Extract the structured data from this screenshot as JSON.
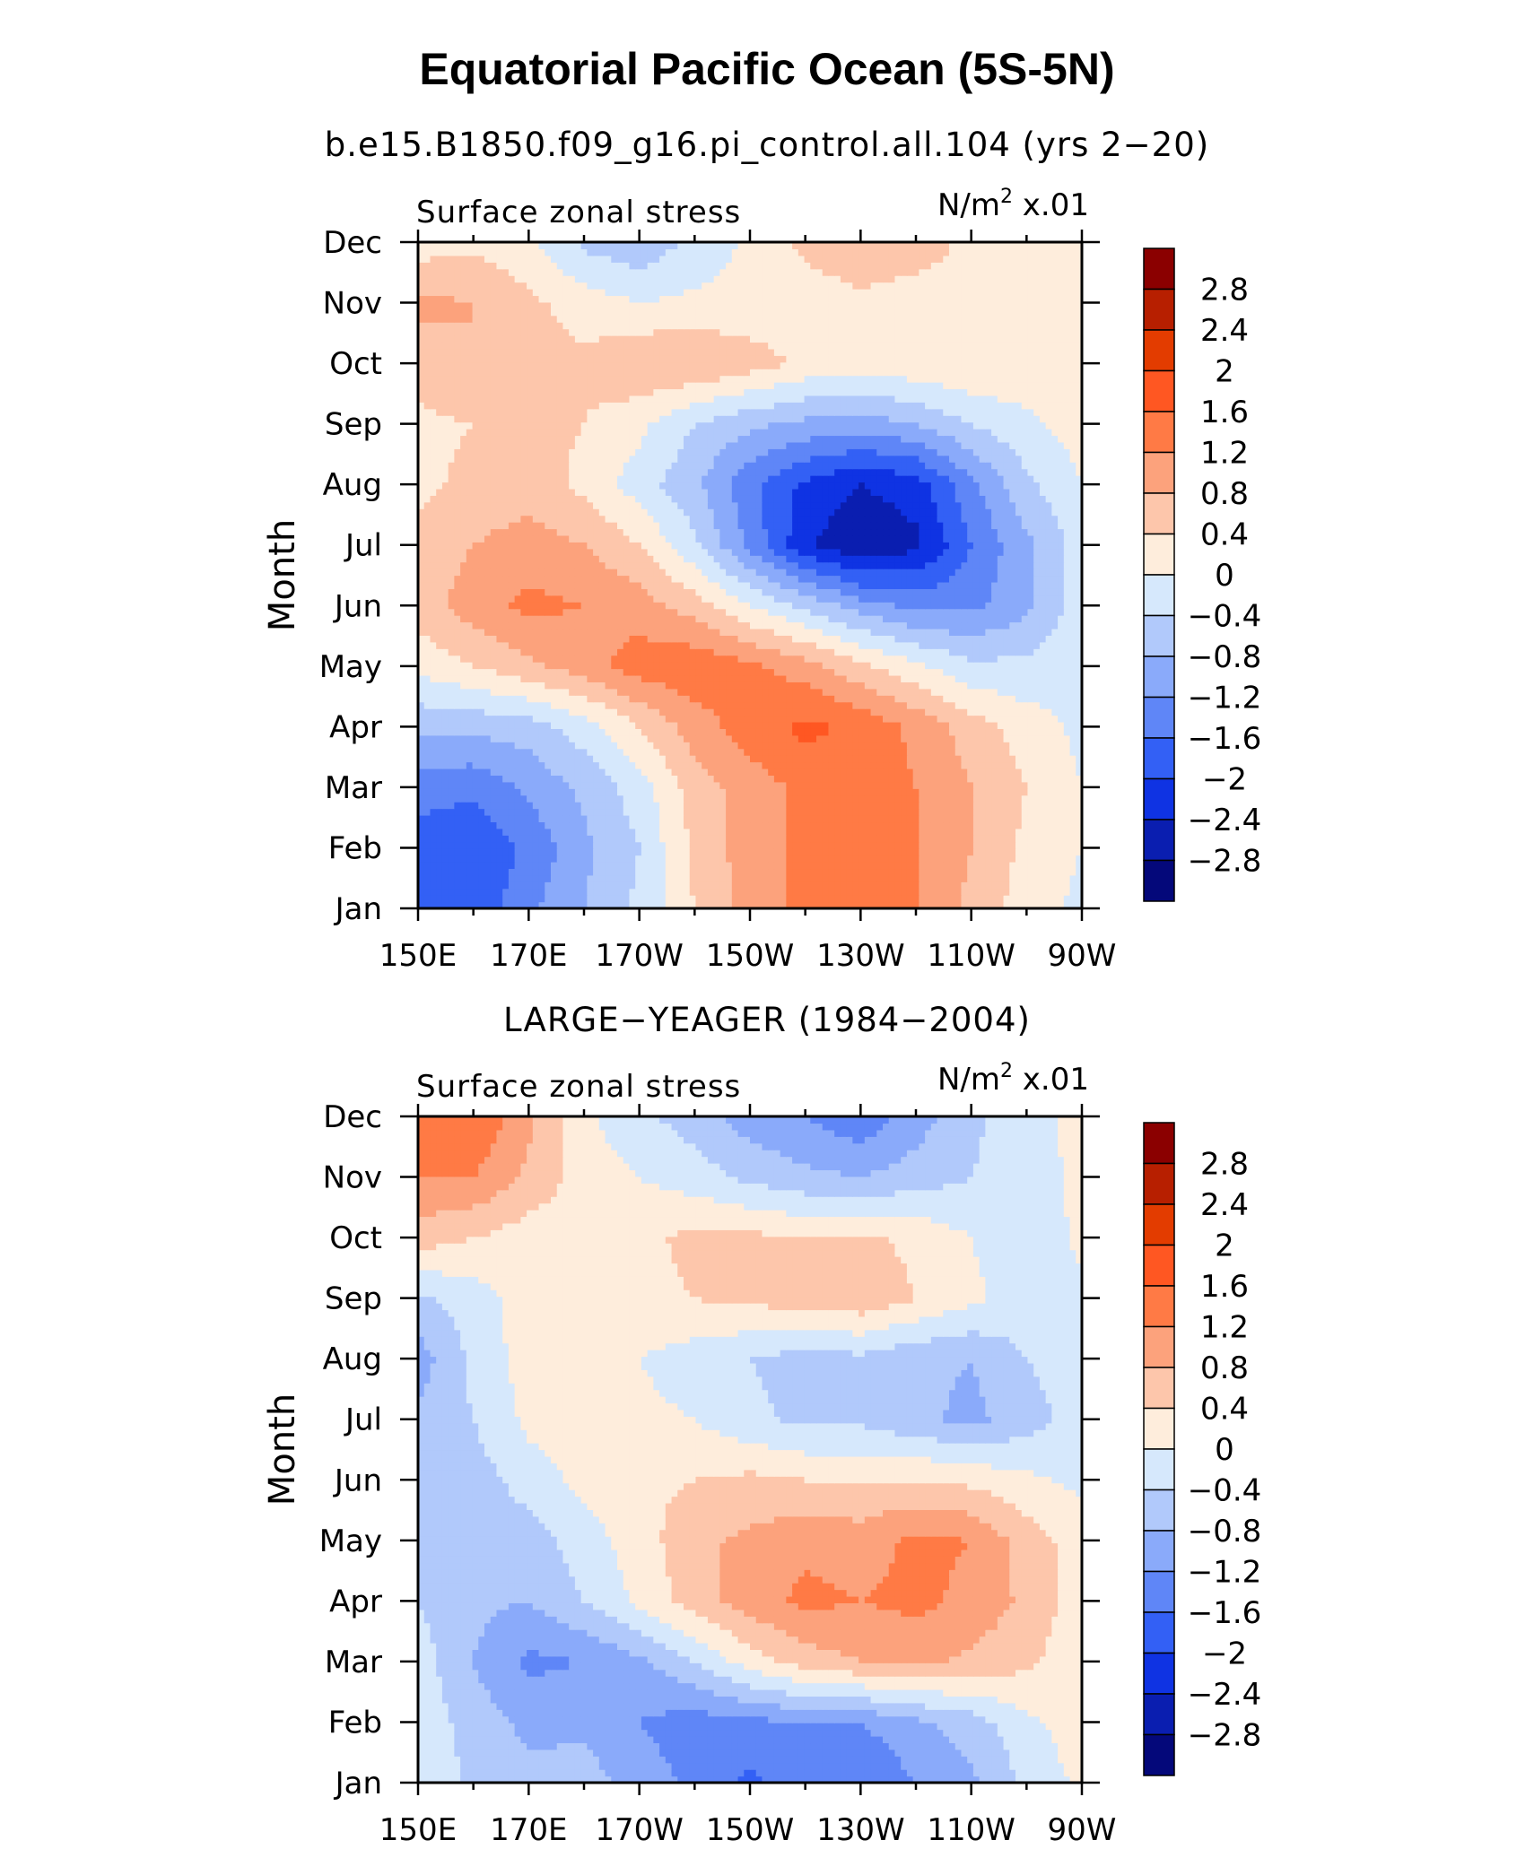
{
  "figure": {
    "title": "Equatorial Pacific Ocean (5S-5N)"
  },
  "chart_data": [
    {
      "type": "heatmap",
      "subtitle": "b.e15.B1850.f09_g16.pi_control.all.104 (yrs 2−20)",
      "left_label": "Surface zonal stress",
      "right_label": "N/m",
      "right_label_sup": "2",
      "right_label_suffix": " x.01",
      "ylabel": "Month",
      "x_ticks": [
        "150E",
        "170E",
        "170W",
        "150W",
        "130W",
        "110W",
        "90W"
      ],
      "x_values": [
        150,
        170,
        190,
        210,
        230,
        250,
        270
      ],
      "xlim": [
        150,
        270
      ],
      "y_ticks": [
        "Jan",
        "Feb",
        "Mar",
        "Apr",
        "May",
        "Jun",
        "Jul",
        "Aug",
        "Sep",
        "Oct",
        "Nov",
        "Dec"
      ],
      "ylim": [
        1,
        12
      ],
      "grid_lon": [
        150,
        160,
        170,
        180,
        190,
        200,
        210,
        220,
        230,
        240,
        250,
        260,
        270
      ],
      "values": [
        [
          -1.7,
          -1.9,
          -1.3,
          -0.8,
          -0.3,
          0.4,
          1.0,
          1.3,
          1.3,
          1.2,
          0.7,
          0.2,
          -0.1
        ],
        [
          -1.8,
          -2.0,
          -1.5,
          -0.9,
          -0.4,
          0.5,
          1.0,
          1.3,
          1.3,
          1.2,
          0.8,
          0.3,
          0.0
        ],
        [
          -1.4,
          -1.5,
          -1.1,
          -0.7,
          -0.2,
          0.6,
          1.0,
          1.3,
          1.4,
          1.2,
          0.8,
          0.4,
          0.0
        ],
        [
          -0.7,
          -0.7,
          -0.6,
          -0.2,
          0.4,
          1.0,
          1.4,
          1.7,
          1.5,
          1.1,
          0.6,
          0.2,
          -0.1
        ],
        [
          0.1,
          0.4,
          0.7,
          1.0,
          1.4,
          1.5,
          1.3,
          1.0,
          0.5,
          0.1,
          -0.3,
          -0.3,
          0.0
        ],
        [
          0.6,
          1.0,
          1.3,
          1.2,
          1.0,
          0.6,
          0.0,
          -0.5,
          -1.0,
          -1.3,
          -1.3,
          -0.9,
          -0.2
        ],
        [
          0.5,
          0.8,
          1.0,
          0.8,
          0.4,
          -0.3,
          -1.3,
          -2.3,
          -2.8,
          -2.5,
          -1.6,
          -0.9,
          -0.2
        ],
        [
          0.3,
          0.5,
          0.6,
          0.3,
          -0.2,
          -0.7,
          -1.5,
          -2.1,
          -2.4,
          -2.2,
          -1.3,
          -0.5,
          0.0
        ],
        [
          0.3,
          0.4,
          0.5,
          0.4,
          0.1,
          -0.4,
          -0.7,
          -0.9,
          -1.0,
          -0.8,
          -0.4,
          -0.1,
          0.2
        ],
        [
          0.6,
          0.8,
          0.6,
          0.5,
          0.8,
          0.8,
          0.6,
          0.3,
          0.2,
          0.3,
          0.4,
          0.3,
          0.4
        ],
        [
          0.9,
          0.8,
          0.5,
          0.2,
          0.0,
          0.1,
          0.1,
          0.2,
          0.3,
          0.2,
          0.3,
          0.3,
          0.3
        ],
        [
          0.2,
          0.3,
          0.1,
          -0.5,
          -0.7,
          -0.3,
          0.1,
          0.5,
          0.7,
          0.6,
          0.3,
          0.2,
          0.1
        ]
      ]
    },
    {
      "type": "heatmap",
      "subtitle": "LARGE−YEAGER (1984−2004)",
      "left_label": "Surface zonal stress",
      "right_label": "N/m",
      "right_label_sup": "2",
      "right_label_suffix": " x.01",
      "ylabel": "Month",
      "x_ticks": [
        "150E",
        "170E",
        "170W",
        "150W",
        "130W",
        "110W",
        "90W"
      ],
      "x_values": [
        150,
        170,
        190,
        210,
        230,
        250,
        270
      ],
      "xlim": [
        150,
        270
      ],
      "y_ticks": [
        "Jan",
        "Feb",
        "Mar",
        "Apr",
        "May",
        "Jun",
        "Jul",
        "Aug",
        "Sep",
        "Oct",
        "Nov",
        "Dec"
      ],
      "ylim": [
        1,
        12
      ],
      "grid_lon": [
        150,
        160,
        170,
        180,
        190,
        200,
        210,
        220,
        230,
        240,
        250,
        260,
        270
      ],
      "values": [
        [
          0.0,
          -0.5,
          -0.7,
          -0.6,
          -1.0,
          -1.3,
          -1.7,
          -1.4,
          -1.6,
          -1.2,
          -0.9,
          -0.3,
          0.1
        ],
        [
          -0.1,
          -0.6,
          -0.9,
          -0.9,
          -1.2,
          -1.4,
          -1.3,
          -1.2,
          -1.2,
          -0.9,
          -0.6,
          -0.1,
          0.2
        ],
        [
          -0.2,
          -0.8,
          -1.3,
          -1.2,
          -0.9,
          -0.4,
          0.2,
          0.6,
          0.8,
          0.9,
          0.7,
          0.5,
          0.1
        ],
        [
          -0.4,
          -0.7,
          -0.8,
          -0.4,
          0.1,
          0.6,
          1.0,
          1.3,
          1.2,
          1.3,
          1.1,
          0.7,
          0.2
        ],
        [
          -0.5,
          -0.8,
          -0.6,
          -0.2,
          0.2,
          0.7,
          0.9,
          1.1,
          1.0,
          1.3,
          1.2,
          0.6,
          0.2
        ],
        [
          -0.6,
          -0.6,
          -0.2,
          0.1,
          0.3,
          0.4,
          0.5,
          0.4,
          0.4,
          0.4,
          0.3,
          0.1,
          -0.1
        ],
        [
          -0.7,
          -0.4,
          0.1,
          0.2,
          0.1,
          0.0,
          -0.3,
          -0.5,
          -0.5,
          -0.7,
          -0.9,
          -0.6,
          -0.2
        ],
        [
          -1.0,
          -0.3,
          0.2,
          0.2,
          0.0,
          -0.2,
          -0.4,
          -0.6,
          -0.5,
          -0.7,
          -0.8,
          -0.4,
          -0.1
        ],
        [
          -0.5,
          -0.2,
          0.2,
          0.3,
          0.3,
          0.4,
          0.5,
          0.6,
          0.7,
          0.4,
          0.1,
          -0.2,
          -0.1
        ],
        [
          0.6,
          0.4,
          0.2,
          0.2,
          0.3,
          0.5,
          0.5,
          0.4,
          0.5,
          0.3,
          0.0,
          -0.3,
          0.1
        ],
        [
          1.2,
          1.2,
          0.7,
          0.2,
          0.0,
          -0.2,
          -0.5,
          -0.7,
          -0.8,
          -0.6,
          -0.4,
          -0.2,
          0.1
        ],
        [
          1.4,
          1.6,
          0.9,
          0.1,
          -0.3,
          -0.6,
          -1.0,
          -1.2,
          -1.5,
          -1.0,
          -0.5,
          -0.1,
          0.1
        ]
      ]
    }
  ],
  "colorbar": {
    "labels": [
      "2.8",
      "2.4",
      "2",
      "1.6",
      "1.2",
      "0.8",
      "0.4",
      "0",
      "−0.4",
      "−0.8",
      "−1.2",
      "−1.6",
      "−2",
      "−2.4",
      "−2.8"
    ],
    "levels": [
      2.8,
      2.4,
      2.0,
      1.6,
      1.2,
      0.8,
      0.4,
      0.0,
      -0.4,
      -0.8,
      -1.2,
      -1.6,
      -2.0,
      -2.4,
      -2.8
    ],
    "colors": [
      "#8b0000",
      "#b71f00",
      "#e33c00",
      "#ff5722",
      "#ff7a45",
      "#fca27c",
      "#fdc6ab",
      "#feeddc",
      "#d6e8fc",
      "#b1c9fb",
      "#8aaafa",
      "#5f86f7",
      "#3360f5",
      "#0f33e3",
      "#0a1eb0",
      "#04087a"
    ]
  }
}
